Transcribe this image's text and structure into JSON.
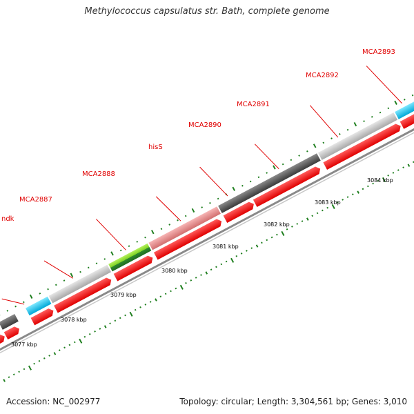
{
  "title": "Methylococcus capsulatus str. Bath, complete genome",
  "footer": {
    "accession": "Accession: NC_002977",
    "topology": "Topology: circular; Length: 3,304,561 bp; Genes: 3,010"
  },
  "colors": {
    "gene_label": "#e00000",
    "cds_red": "#ff0000",
    "backbone": "#8a8a8a",
    "tick_green": "#1f7f1f",
    "gene_cyan": "#1ec8f0",
    "gene_light_gray": "#c4c4c4",
    "gene_dark_gray": "#555555",
    "gene_pink": "#e88d8d",
    "gene_lime": "#7ed321"
  },
  "gene_labels": [
    "ndk",
    "MCA2887",
    "MCA2888",
    "hisS",
    "MCA2890",
    "MCA2891",
    "MCA2892",
    "MCA2893"
  ],
  "kbp_labels": [
    "3077 kbp",
    "3078 kbp",
    "3079 kbp",
    "3080 kbp",
    "3081 kbp",
    "3082 kbp",
    "3083 kbp",
    "3084 kbp"
  ]
}
